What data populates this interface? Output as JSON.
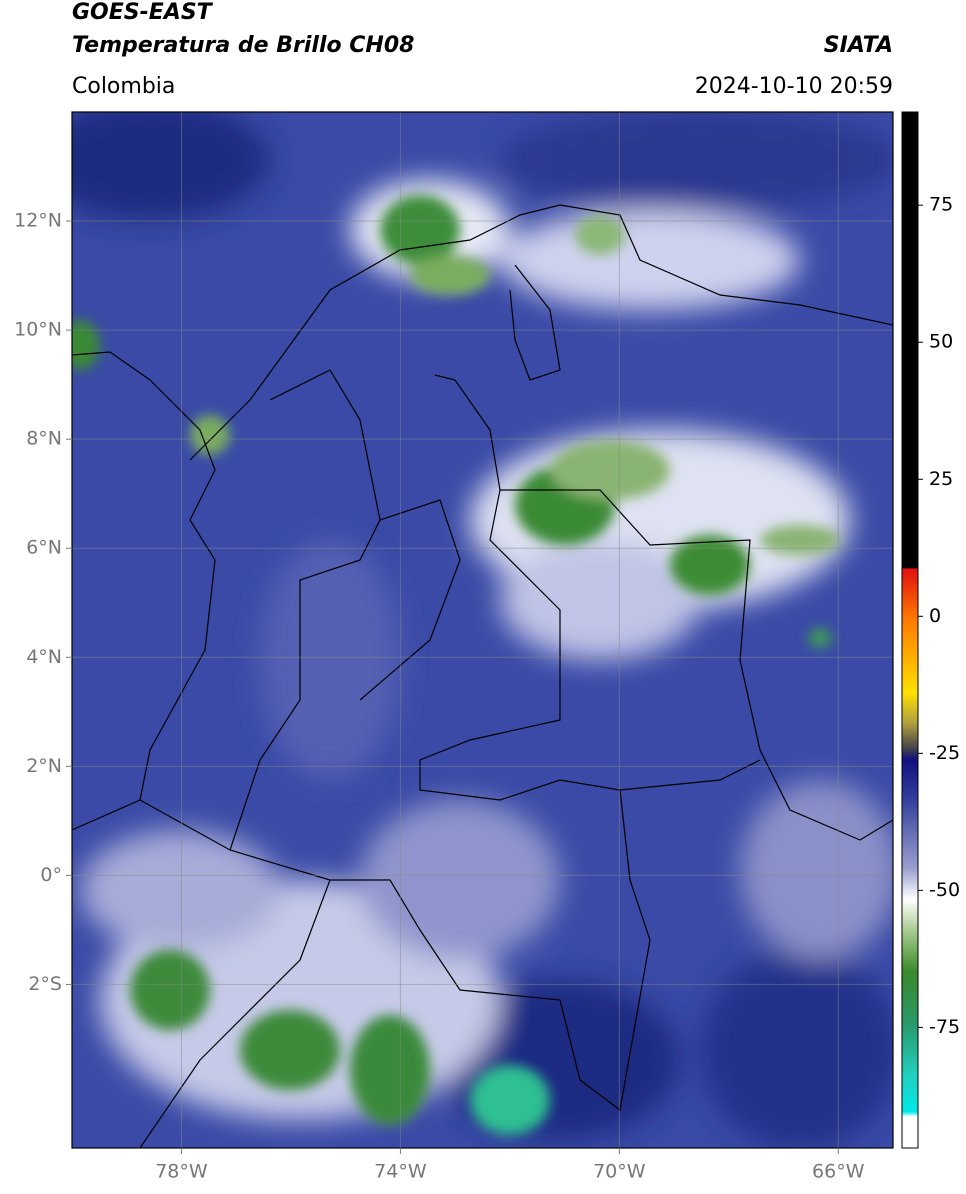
{
  "header": {
    "title": "GOES-EAST",
    "subtitle": "Temperatura de Brillo CH08",
    "source": "SIATA",
    "region": "Colombia",
    "timestamp": "2024-10-10 20:59"
  },
  "map": {
    "lonlim": [
      -80,
      -65
    ],
    "latlim": [
      -5,
      14
    ],
    "lonticks": [
      {
        "value": -78,
        "label": "78°W"
      },
      {
        "value": -74,
        "label": "74°W"
      },
      {
        "value": -70,
        "label": "70°W"
      },
      {
        "value": -66,
        "label": "66°W"
      }
    ],
    "latticks": [
      {
        "value": 12,
        "label": "12°N"
      },
      {
        "value": 10,
        "label": "10°N"
      },
      {
        "value": 8,
        "label": "8°N"
      },
      {
        "value": 6,
        "label": "6°N"
      },
      {
        "value": 4,
        "label": "4°N"
      },
      {
        "value": 2,
        "label": "2°N"
      },
      {
        "value": 0,
        "label": "0°"
      },
      {
        "value": -2,
        "label": "2°S"
      }
    ],
    "grid": true
  },
  "colorbar": {
    "lim": [
      -97,
      92
    ],
    "ticks": [
      75,
      50,
      25,
      0,
      -25,
      -50,
      -75
    ]
  }
}
